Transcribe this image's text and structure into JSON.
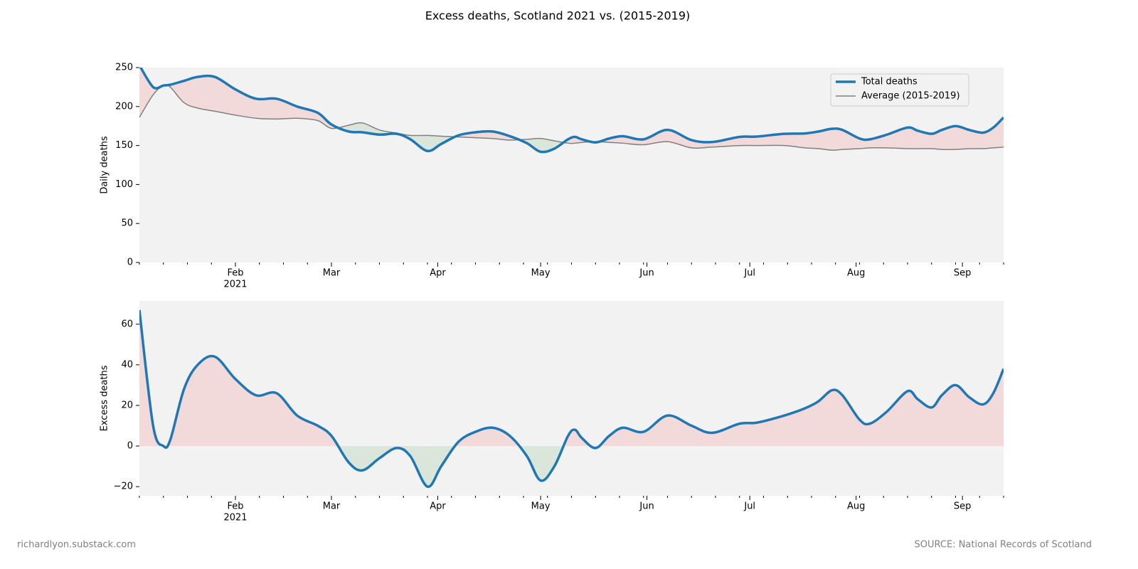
{
  "title": "Excess deaths, Scotland 2021 vs. (2015-2019)",
  "footer": {
    "left": "richardlyon.substack.com",
    "right": "SOURCE: National Records of Scotland"
  },
  "chart_data": [
    {
      "type": "line",
      "ylabel": "Daily deaths",
      "ylim": [
        0,
        250
      ],
      "yticks": [
        0,
        50,
        100,
        150,
        200,
        250
      ],
      "xlim": [
        4,
        256
      ],
      "xticks": [
        {
          "value": 32,
          "label": "Feb"
        },
        {
          "value": 60,
          "label": "Mar"
        },
        {
          "value": 91,
          "label": "Apr"
        },
        {
          "value": 121,
          "label": "May"
        },
        {
          "value": 152,
          "label": "Jun"
        },
        {
          "value": 182,
          "label": "Jul"
        },
        {
          "value": 213,
          "label": "Aug"
        },
        {
          "value": 244,
          "label": "Sep"
        }
      ],
      "xminorticks": [
        4,
        11,
        18,
        25,
        32,
        39,
        46,
        53,
        60,
        67,
        74,
        81,
        88,
        95,
        102,
        109,
        116,
        123,
        130,
        137,
        144,
        151,
        158,
        165,
        172,
        179,
        186,
        193,
        200,
        207,
        214,
        221,
        228,
        235,
        242,
        249,
        256
      ],
      "x_year_label": "2021",
      "legend": "upper right",
      "above_color": "#f3dada",
      "below_color": "#dae6da",
      "x": [
        4,
        8,
        11,
        13,
        17,
        21,
        26,
        32,
        38,
        44,
        50,
        56,
        60,
        65,
        69,
        74,
        79,
        83,
        88,
        92,
        97,
        102,
        107,
        112,
        117,
        121,
        125,
        129,
        131,
        133,
        137,
        141,
        145,
        151,
        158,
        165,
        171,
        179,
        184,
        192,
        198,
        202,
        206,
        209,
        214,
        217,
        222,
        228,
        231,
        235,
        238,
        242,
        246,
        250,
        253,
        256
      ],
      "series": [
        {
          "name": "Total deaths",
          "color": "#1f77b4",
          "values": [
            253,
            225,
            227,
            228,
            233,
            238,
            238,
            222,
            210,
            210,
            200,
            192,
            177,
            168,
            167,
            164,
            165,
            158,
            143,
            152,
            163,
            167,
            168,
            162,
            153,
            142,
            146,
            158,
            161,
            158,
            154,
            159,
            162,
            158,
            170,
            157,
            154.5,
            161,
            161.5,
            165,
            165.5,
            168,
            171.5,
            170,
            159,
            158,
            164,
            173,
            169,
            165,
            170,
            175,
            170,
            166.5,
            173,
            186
          ]
        },
        {
          "name": "Average (2015-2019)",
          "color": "#808080",
          "values": [
            186,
            215,
            227,
            225,
            205,
            198,
            194,
            189,
            185,
            184,
            185,
            182,
            172,
            176,
            179,
            170,
            166,
            163,
            163,
            162,
            161,
            160,
            159,
            157,
            158,
            159,
            156,
            153,
            153,
            154,
            155,
            154,
            153,
            151,
            155,
            147,
            148,
            150,
            150,
            150,
            147,
            146,
            144,
            145,
            146,
            147,
            147,
            146,
            146,
            146,
            145,
            145,
            146,
            146,
            147,
            148
          ]
        }
      ]
    },
    {
      "type": "area",
      "ylabel": "Excess deaths",
      "ylim": [
        -24.5,
        71.5
      ],
      "yticks": [
        {
          "value": -20,
          "label": "−20"
        },
        0,
        20,
        40,
        60
      ],
      "xlim": [
        4,
        256
      ],
      "xticks": [
        {
          "value": 32,
          "label": "Feb"
        },
        {
          "value": 60,
          "label": "Mar"
        },
        {
          "value": 91,
          "label": "Apr"
        },
        {
          "value": 121,
          "label": "May"
        },
        {
          "value": 152,
          "label": "Jun"
        },
        {
          "value": 182,
          "label": "Jul"
        },
        {
          "value": 213,
          "label": "Aug"
        },
        {
          "value": 244,
          "label": "Sep"
        }
      ],
      "xminorticks": [
        4,
        11,
        18,
        25,
        32,
        39,
        46,
        53,
        60,
        67,
        74,
        81,
        88,
        95,
        102,
        109,
        116,
        123,
        130,
        137,
        144,
        151,
        158,
        165,
        172,
        179,
        186,
        193,
        200,
        207,
        214,
        221,
        228,
        235,
        242,
        249,
        256
      ],
      "x_year_label": "2021",
      "above_color": "#f3dada",
      "below_color": "#dae6da",
      "x": [
        4,
        8,
        11,
        13,
        17,
        21,
        26,
        32,
        38,
        44,
        50,
        56,
        60,
        65,
        69,
        74,
        79,
        83,
        88,
        92,
        97,
        102,
        107,
        112,
        117,
        121,
        125,
        129,
        131,
        133,
        137,
        141,
        145,
        151,
        158,
        165,
        171,
        179,
        184,
        192,
        198,
        202,
        206,
        209,
        214,
        217,
        222,
        228,
        231,
        235,
        238,
        242,
        246,
        250,
        253,
        256
      ],
      "series": [
        {
          "color": "#1f77b4",
          "values": [
            67,
            10,
            0,
            3,
            28,
            40,
            44,
            33,
            25,
            26,
            15,
            10,
            5,
            -8,
            -12,
            -6,
            -1,
            -5,
            -20,
            -10,
            2,
            7,
            9,
            5,
            -5,
            -17,
            -10,
            5,
            8,
            4,
            -1,
            5,
            9,
            7,
            15,
            10,
            6.5,
            11,
            11.5,
            15,
            18.5,
            22,
            27.5,
            25,
            13,
            11,
            17,
            27,
            23,
            19,
            25,
            30,
            24,
            20.5,
            26,
            38
          ]
        }
      ]
    }
  ]
}
